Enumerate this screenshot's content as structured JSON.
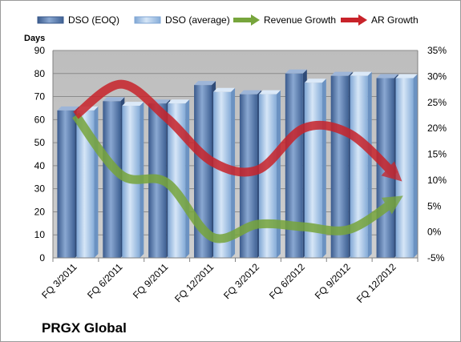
{
  "chart_data": {
    "type": "bar",
    "title": "PRGX Global",
    "ylabel_left": "Days",
    "categories": [
      "FQ 3/2011",
      "FQ 6/2011",
      "FQ 9/2011",
      "FQ 12/2011",
      "FQ 3/2012",
      "FQ 6/2012",
      "FQ 9/2012",
      "FQ 12/2012"
    ],
    "y_left": {
      "min": 0,
      "max": 90,
      "step": 10,
      "ticks": [
        "0",
        "10",
        "20",
        "30",
        "40",
        "50",
        "60",
        "70",
        "80",
        "90"
      ]
    },
    "y_right": {
      "min": -5,
      "max": 35,
      "step": 5,
      "ticks": [
        "-5%",
        "0%",
        "5%",
        "10%",
        "15%",
        "20%",
        "25%",
        "30%",
        "35%"
      ]
    },
    "series": [
      {
        "name": "DSO (EOQ)",
        "kind": "bar",
        "axis": "left",
        "color": "#5b7fae",
        "values": [
          64,
          68,
          67,
          75,
          71,
          80,
          79,
          78
        ]
      },
      {
        "name": "DSO (average)",
        "kind": "bar",
        "axis": "left",
        "color": "#a9c8ea",
        "values": [
          64,
          66,
          67,
          72,
          71,
          76,
          79,
          78
        ]
      },
      {
        "name": "Revenue Growth",
        "kind": "line",
        "axis": "right",
        "color": "#77a53c",
        "values": [
          22.5,
          11.0,
          9.5,
          -1.0,
          1.5,
          1.0,
          0.5,
          6.0
        ]
      },
      {
        "name": "AR Growth",
        "kind": "line",
        "axis": "right",
        "color": "#c8232a",
        "values": [
          22.5,
          28.5,
          22.0,
          13.5,
          12.0,
          20.0,
          19.0,
          11.0
        ]
      }
    ],
    "legend_position": "top",
    "grid": true
  }
}
